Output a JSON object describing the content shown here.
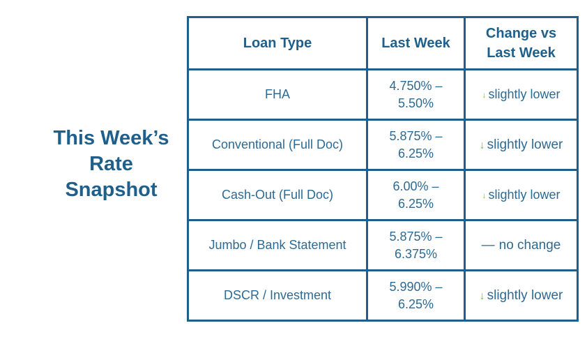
{
  "title": {
    "line1": "This Week’s",
    "line2": "Rate",
    "line3": "Snapshot"
  },
  "colors": {
    "heading": "#1f5f8b",
    "border": "#1f5f8b",
    "arrow_down": "#7cc245"
  },
  "table": {
    "headers": {
      "loan_type": "Loan Type",
      "last_week": "Last Week",
      "change_line1": "Change vs",
      "change_line2": "Last Week"
    },
    "rows": [
      {
        "loan_type": "FHA",
        "rate_line1": "4.750% –",
        "rate_line2": "5.50%",
        "change_icon": "arrow-down-icon",
        "change_symbol": "↓",
        "change_text": "slightly lower"
      },
      {
        "loan_type": "Conventional (Full Doc)",
        "rate_line1": "5.875% –",
        "rate_line2": "6.25%",
        "change_icon": "arrow-down-icon",
        "change_symbol": "↓",
        "change_text": "slightly lower"
      },
      {
        "loan_type": "Cash-Out (Full Doc)",
        "rate_line1": "6.00% –",
        "rate_line2": "6.25%",
        "change_icon": "arrow-down-icon",
        "change_symbol": "↓",
        "change_text": "slightly lower"
      },
      {
        "loan_type": "Jumbo / Bank Statement",
        "rate_line1": "5.875% –",
        "rate_line2": "6.375%",
        "change_icon": "dash-icon",
        "change_symbol": "—",
        "change_text": "no change"
      },
      {
        "loan_type": "DSCR / Investment",
        "rate_line1": "5.990% –",
        "rate_line2": "6.25%",
        "change_icon": "arrow-down-icon",
        "change_symbol": "↓",
        "change_text": "slightly lower"
      }
    ]
  }
}
